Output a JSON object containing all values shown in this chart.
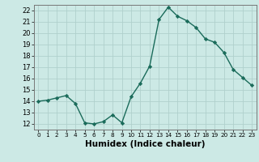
{
  "x": [
    0,
    1,
    2,
    3,
    4,
    5,
    6,
    7,
    8,
    9,
    10,
    11,
    12,
    13,
    14,
    15,
    16,
    17,
    18,
    19,
    20,
    21,
    22,
    23
  ],
  "y": [
    14.0,
    14.1,
    14.3,
    14.5,
    13.8,
    12.1,
    12.0,
    12.2,
    12.8,
    12.1,
    14.4,
    15.6,
    17.1,
    21.2,
    22.3,
    21.5,
    21.1,
    20.5,
    19.5,
    19.2,
    18.3,
    16.8,
    16.1,
    15.4
  ],
  "line_color": "#1a6b5a",
  "marker": "D",
  "marker_size": 2.2,
  "bg_color": "#cce9e5",
  "grid_color": "#b0d0cc",
  "xlabel": "Humidex (Indice chaleur)",
  "ylim": [
    11.5,
    22.5
  ],
  "xlim": [
    -0.5,
    23.5
  ],
  "yticks": [
    12,
    13,
    14,
    15,
    16,
    17,
    18,
    19,
    20,
    21,
    22
  ],
  "xticks": [
    0,
    1,
    2,
    3,
    4,
    5,
    6,
    7,
    8,
    9,
    10,
    11,
    12,
    13,
    14,
    15,
    16,
    17,
    18,
    19,
    20,
    21,
    22,
    23
  ],
  "ytick_labelsize": 6.0,
  "xtick_labelsize": 5.2,
  "xlabel_fontsize": 7.5,
  "line_width": 1.0
}
